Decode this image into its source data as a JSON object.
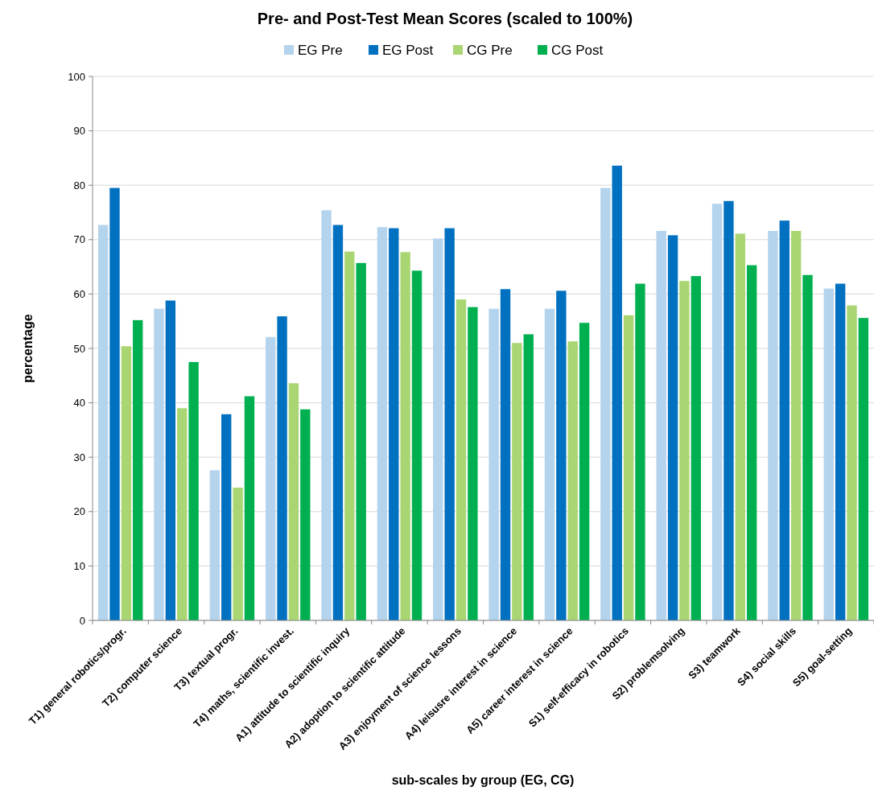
{
  "chart_data": {
    "type": "bar",
    "title": "Pre- and Post-Test Mean Scores (scaled to 100%)",
    "xlabel": "sub-scales by group (EG, CG)",
    "ylabel": "percentage",
    "categories": [
      "T1) general robotics/progr.",
      "T2) computer science",
      "T3) textual progr.",
      "T4) maths, scientific invest.",
      "A1) attitude to scientific inquiry",
      "A2) adoption to scientific attitude",
      "A3) enjoyment of science lessons",
      "A4) leisusre interest in science",
      "A5) career interest in science",
      "S1) self-efficacy in robotics",
      "S2) problemsolving",
      "S3) teamwork",
      "S4) social skills",
      "S5) goal-setting"
    ],
    "series": [
      {
        "name": "EG Pre",
        "color": "#b4d3ec",
        "values": [
          72.7,
          57.3,
          27.6,
          52.1,
          75.4,
          72.3,
          70.2,
          57.3,
          57.3,
          79.5,
          71.6,
          76.6,
          71.6,
          61.0
        ]
      },
      {
        "name": "EG Post",
        "color": "#0070c0",
        "values": [
          79.5,
          58.8,
          37.9,
          55.9,
          72.7,
          72.1,
          72.1,
          60.9,
          60.6,
          83.6,
          70.8,
          77.1,
          73.5,
          61.9
        ]
      },
      {
        "name": "CG Pre",
        "color": "#a9d672",
        "values": [
          50.4,
          39.0,
          24.4,
          43.6,
          67.8,
          67.7,
          59.0,
          51.0,
          51.3,
          56.1,
          62.4,
          71.1,
          71.6,
          57.9
        ]
      },
      {
        "name": "CG Post",
        "color": "#00b050",
        "values": [
          55.2,
          47.5,
          41.2,
          38.8,
          65.7,
          64.3,
          57.6,
          52.6,
          54.7,
          61.9,
          63.3,
          65.3,
          63.5,
          55.6
        ]
      }
    ],
    "ylim": [
      0,
      100
    ],
    "yticks": [
      0,
      10,
      20,
      30,
      40,
      50,
      60,
      70,
      80,
      90,
      100
    ],
    "grid": "y",
    "legend": "top"
  }
}
